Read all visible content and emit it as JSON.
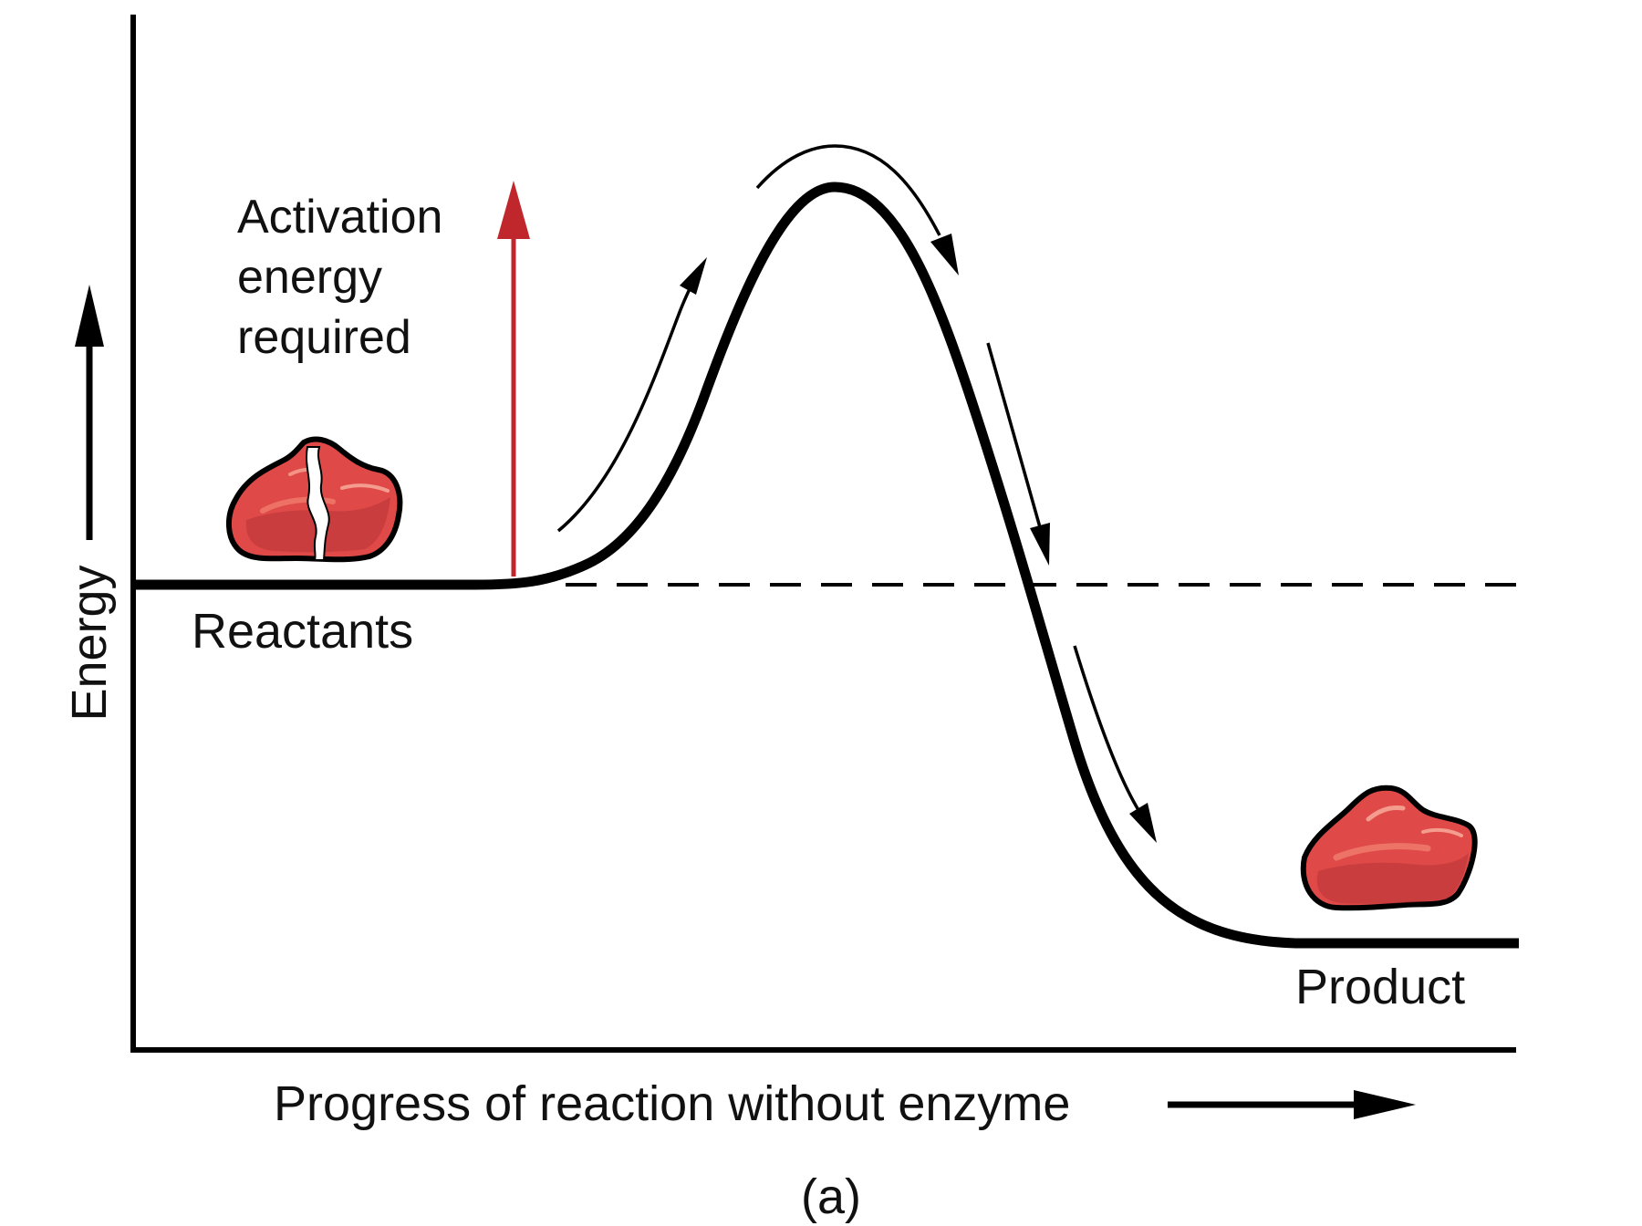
{
  "diagram": {
    "y_axis_label": "Energy",
    "x_axis_label": "Progress of reaction without enzyme",
    "activation_label": {
      "line1": "Activation",
      "line2": "energy",
      "line3": "required"
    },
    "reactants_label": "Reactants",
    "product_label": "Product",
    "caption": "(a)",
    "colors": {
      "curve": "#000000",
      "activation_arrow": "#c0272d",
      "molecule_fill": "#df4a48",
      "molecule_highlight": "#f07a6d",
      "molecule_shadow": "#b83336",
      "dashed_line": "#000000"
    },
    "icons": {
      "reactant": "split-molecule-icon",
      "product": "molecule-icon"
    }
  }
}
